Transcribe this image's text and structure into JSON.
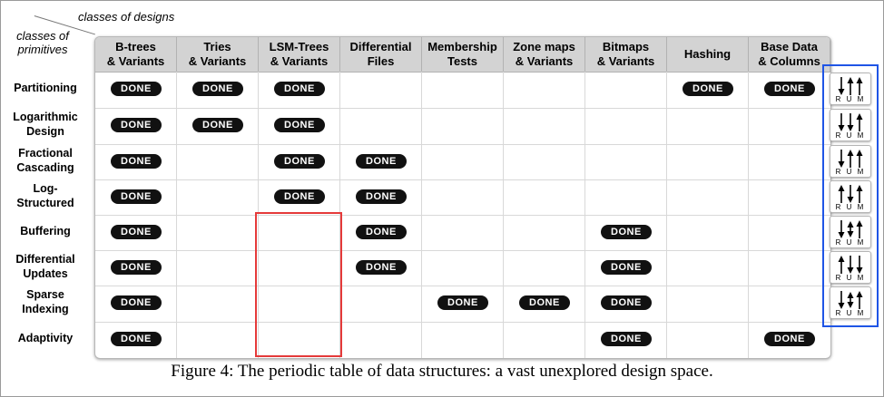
{
  "corner": {
    "top_label": "classes of designs",
    "left_label": "classes\nof primitives"
  },
  "columns": [
    "B-trees\n& Variants",
    "Tries\n& Variants",
    "LSM-Trees\n& Variants",
    "Differential\nFiles",
    "Membership\nTests",
    "Zone maps\n& Variants",
    "Bitmaps\n& Variants",
    "Hashing",
    "Base Data\n& Columns"
  ],
  "rows": [
    {
      "label": "Partitioning",
      "done": [
        0,
        1,
        2,
        7,
        8
      ],
      "rum": [
        "down",
        "up",
        "up"
      ]
    },
    {
      "label": "Logarithmic\nDesign",
      "done": [
        0,
        1,
        2
      ],
      "rum": [
        "down",
        "down",
        "up"
      ]
    },
    {
      "label": "Fractional\nCascading",
      "done": [
        0,
        2,
        3
      ],
      "rum": [
        "down",
        "up",
        "up"
      ]
    },
    {
      "label": "Log-\nStructured",
      "done": [
        0,
        2,
        3
      ],
      "rum": [
        "up",
        "down",
        "up"
      ]
    },
    {
      "label": "Buffering",
      "done": [
        0,
        3,
        6
      ],
      "rum": [
        "down",
        "diamond",
        "up"
      ]
    },
    {
      "label": "Differential\nUpdates",
      "done": [
        0,
        3,
        6
      ],
      "rum": [
        "up",
        "down",
        "down"
      ]
    },
    {
      "label": "Sparse\nIndexing",
      "done": [
        0,
        4,
        5,
        6
      ],
      "rum": [
        "down",
        "diamond",
        "up"
      ]
    },
    {
      "label": "Adaptivity",
      "done": [
        0,
        6,
        8
      ],
      "rum": []
    }
  ],
  "done_label": "DONE",
  "rum_letters": "RUM",
  "caption": "Figure 4: The periodic table of data structures: a vast unexplored design space.",
  "colors": {
    "highlight_red": "#e53a3a",
    "highlight_blue": "#1f55e6",
    "badge": "#111111",
    "header_bg": "#d3d3d3"
  }
}
